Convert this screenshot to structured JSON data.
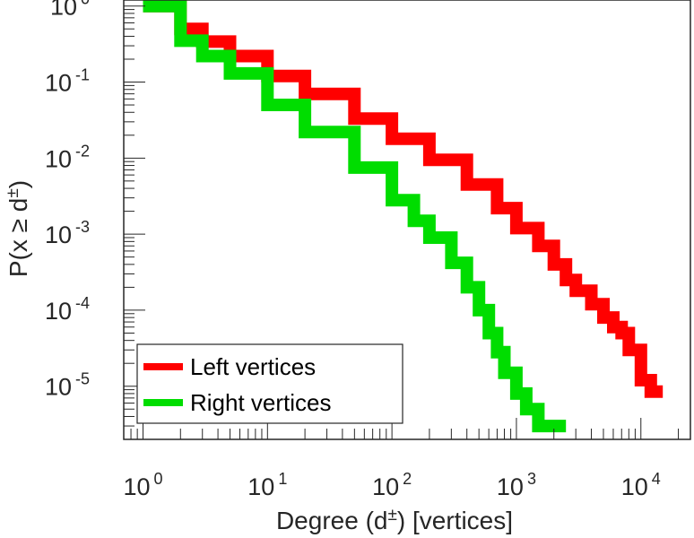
{
  "chart_data": {
    "type": "line",
    "xlabel": {
      "prefix": "Degree (d",
      "superscript": "±",
      "suffix": ") [vertices]"
    },
    "ylabel": {
      "prefix": "P(x ≥ d",
      "superscript": "±",
      "suffix": ")"
    },
    "x_scale": "log",
    "y_scale": "log",
    "xlim": [
      0.7,
      25000
    ],
    "ylim": [
      2e-06,
      1.2
    ],
    "x_ticks": [
      {
        "value": 1,
        "base": "10",
        "exp": "0"
      },
      {
        "value": 10,
        "base": "10",
        "exp": "1"
      },
      {
        "value": 100,
        "base": "10",
        "exp": "2"
      },
      {
        "value": 1000,
        "base": "10",
        "exp": "3"
      },
      {
        "value": 10000,
        "base": "10",
        "exp": "4"
      }
    ],
    "y_ticks": [
      {
        "value": 1,
        "base": "10",
        "exp": "0"
      },
      {
        "value": 0.1,
        "base": "10",
        "exp": "-1"
      },
      {
        "value": 0.01,
        "base": "10",
        "exp": "-2"
      },
      {
        "value": 0.001,
        "base": "10",
        "exp": "-3"
      },
      {
        "value": 0.0001,
        "base": "10",
        "exp": "-4"
      },
      {
        "value": 1e-05,
        "base": "10",
        "exp": "-5"
      }
    ],
    "grid": false,
    "legend_position": "bottom-left",
    "series": [
      {
        "name": "Left vertices",
        "color": "#ff0000",
        "x": [
          1,
          2,
          3,
          5,
          10,
          20,
          50,
          100,
          200,
          400,
          700,
          1000,
          1500,
          2000,
          2500,
          3000,
          4000,
          5000,
          6000,
          7000,
          8000,
          10000,
          12000,
          15000
        ],
        "y": [
          1,
          0.5,
          0.34,
          0.22,
          0.12,
          0.07,
          0.033,
          0.018,
          0.0095,
          0.0045,
          0.0022,
          0.0012,
          0.0007,
          0.0004,
          0.00025,
          0.00018,
          0.00012,
          8e-05,
          6e-05,
          5e-05,
          3e-05,
          1.2e-05,
          8.5e-06,
          8.5e-06
        ]
      },
      {
        "name": "Right vertices",
        "color": "#00dd00",
        "x": [
          1,
          2,
          3,
          5,
          10,
          20,
          50,
          100,
          150,
          200,
          300,
          400,
          500,
          600,
          700,
          800,
          1000,
          1200,
          1500,
          2000,
          2500
        ],
        "y": [
          1,
          0.35,
          0.22,
          0.13,
          0.05,
          0.022,
          0.0075,
          0.0028,
          0.0015,
          0.0009,
          0.00042,
          0.0002,
          0.0001,
          5e-05,
          2.8e-05,
          1.5e-05,
          8e-06,
          5e-06,
          3e-06,
          3e-06,
          3e-06
        ]
      }
    ]
  }
}
